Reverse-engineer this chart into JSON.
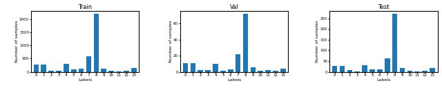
{
  "train": {
    "title": "Train",
    "values": [
      270,
      270,
      50,
      30,
      300,
      80,
      110,
      600,
      2200,
      130,
      40,
      20,
      30,
      150
    ],
    "xlabel": "Labels",
    "ylabel": "Number of samples",
    "xticks": [
      0,
      1,
      2,
      3,
      4,
      5,
      6,
      7,
      8,
      9,
      10,
      11,
      12,
      13
    ]
  },
  "val": {
    "title": "Val",
    "values": [
      11,
      11,
      2,
      2,
      10,
      1,
      3,
      22,
      72,
      6,
      1,
      2,
      1,
      4
    ],
    "xlabel": "Labels",
    "ylabel": "Number of samples",
    "xticks": [
      0,
      1,
      2,
      3,
      4,
      5,
      6,
      7,
      8,
      9,
      10,
      11,
      12,
      13
    ]
  },
  "test": {
    "title": "Test",
    "values": [
      27,
      27,
      7,
      3,
      32,
      10,
      12,
      63,
      270,
      18,
      5,
      3,
      4,
      18
    ],
    "xlabel": "Labels",
    "ylabel": "Number of samples",
    "xticks": [
      0,
      1,
      2,
      3,
      4,
      5,
      6,
      7,
      8,
      9,
      10,
      11,
      12,
      13
    ]
  },
  "bar_color": "#1f77b4",
  "title_fontsize": 6,
  "label_fontsize": 4.5,
  "tick_fontsize": 4
}
